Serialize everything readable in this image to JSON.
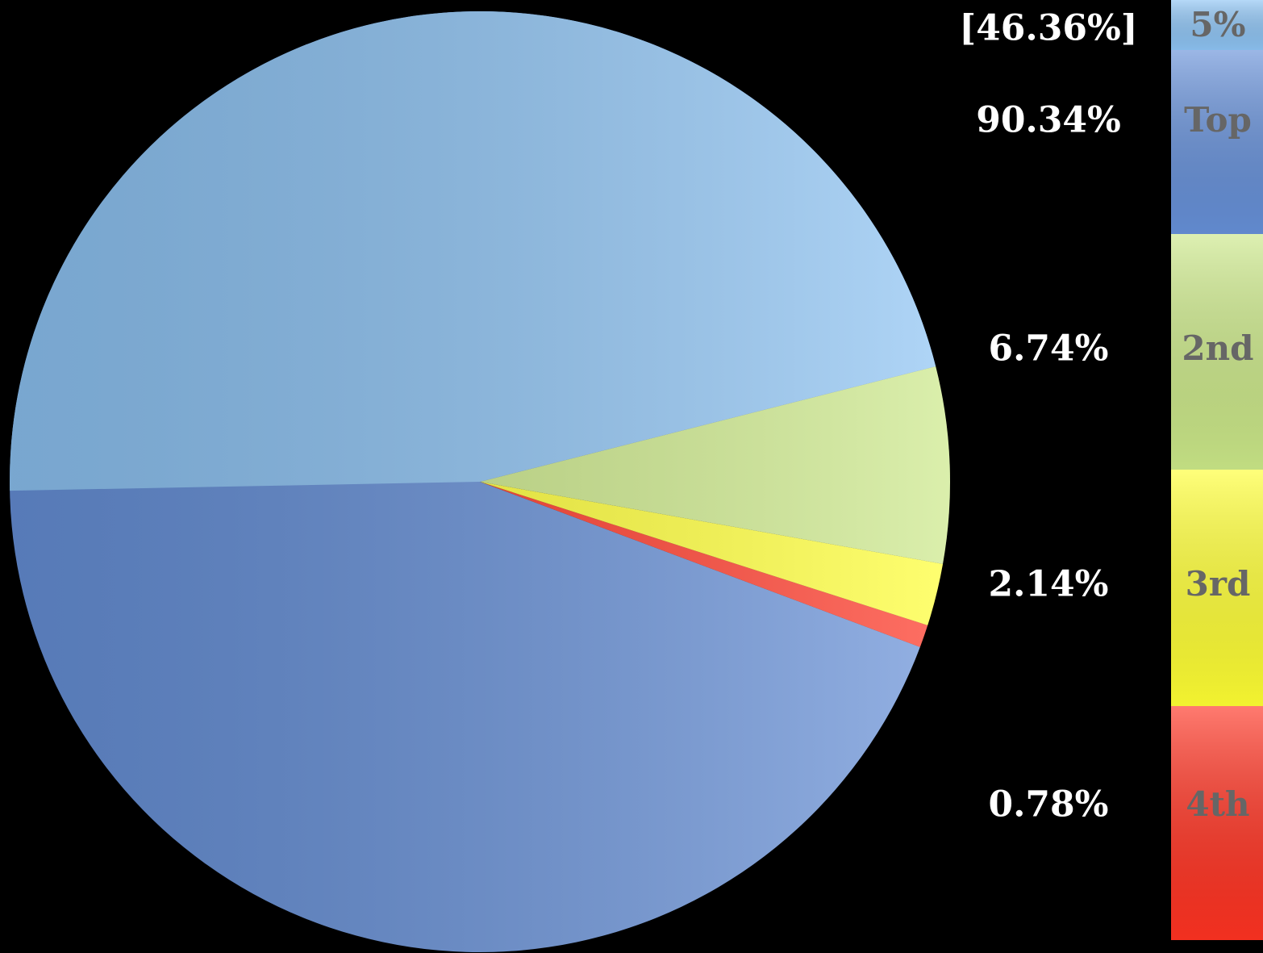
{
  "chart_data": {
    "type": "pie",
    "categories": [
      "5%",
      "Top",
      "2nd",
      "3rd",
      "4th"
    ],
    "values": [
      46.36,
      90.34,
      6.74,
      2.14,
      0.78
    ],
    "value_labels": [
      "[46.36%]",
      "90.34%",
      "6.74%",
      "2.14%",
      "0.78%"
    ],
    "colors": [
      "#8ec4f4",
      "#6690d8",
      "#cbe888",
      "#ffff33",
      "#ff3322"
    ]
  }
}
